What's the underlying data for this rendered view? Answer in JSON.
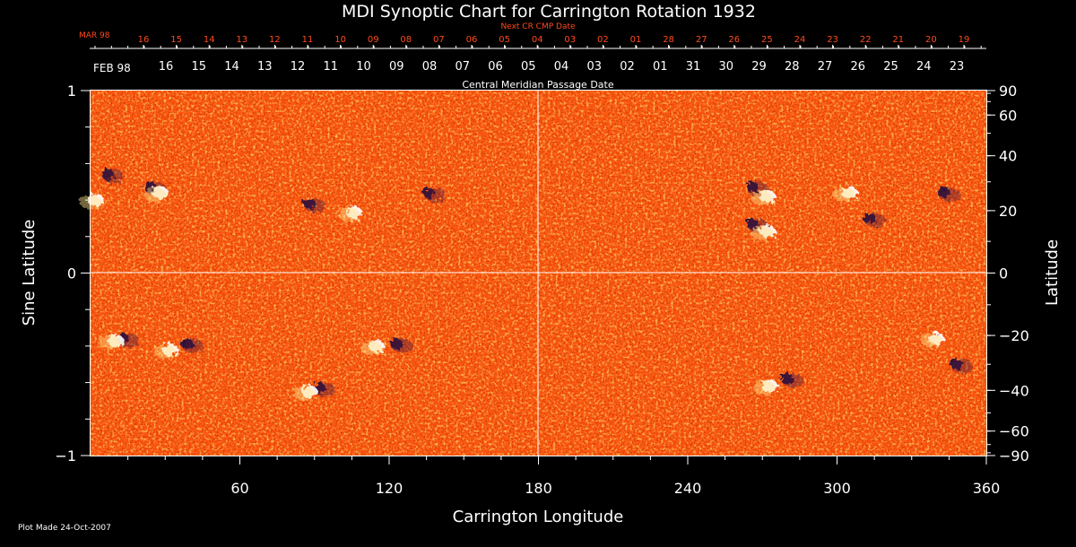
{
  "chart_data": {
    "type": "heatmap",
    "title": "MDI Synoptic Chart for Carrington Rotation 1932",
    "xlabel": "Carrington Longitude",
    "ylabel_left": "Sine Latitude",
    "ylabel_right": "Latitude",
    "xlim": [
      0,
      360
    ],
    "ylim": [
      -1,
      1
    ],
    "x_ticks": [
      "60",
      "120",
      "180",
      "240",
      "300",
      "360"
    ],
    "y_ticks_left": [
      {
        "value": 1,
        "label": "1"
      },
      {
        "value": 0,
        "label": "0"
      },
      {
        "value": -1,
        "label": "−1"
      }
    ],
    "y_ticks_right": [
      "90",
      "60",
      "40",
      "20",
      "0",
      "−20",
      "−40",
      "−60",
      "−90"
    ],
    "top_axis_next": {
      "title": "Next CR CMP Date",
      "month": "MAR 98",
      "dates": [
        "16",
        "15",
        "14",
        "13",
        "12",
        "11",
        "10",
        "09",
        "08",
        "07",
        "06",
        "05",
        "04",
        "03",
        "02",
        "01",
        "28",
        "27",
        "26",
        "25",
        "24",
        "23",
        "22",
        "21",
        "20",
        "19"
      ]
    },
    "top_axis_cmp": {
      "title": "Central Meridian Passage Date",
      "month": "FEB 98",
      "dates": [
        "16",
        "15",
        "14",
        "13",
        "12",
        "11",
        "10",
        "09",
        "08",
        "07",
        "06",
        "05",
        "04",
        "03",
        "02",
        "01",
        "31",
        "30",
        "29",
        "28",
        "27",
        "26",
        "25",
        "24",
        "23"
      ]
    },
    "footer": "Plot Made 24-Oct-2007",
    "colors": {
      "background": "#ff5a10",
      "positive": "#ffffff",
      "negative": "#1a0a3a",
      "accent": "#ff4a1c"
    },
    "regions": [
      {
        "lon": 7,
        "lat": 0.54,
        "polarity": "negative"
      },
      {
        "lon": 2,
        "lat": 0.4,
        "polarity": "positive"
      },
      {
        "lon": 24,
        "lat": 0.47,
        "polarity": "negative"
      },
      {
        "lon": 28,
        "lat": 0.44,
        "polarity": "positive"
      },
      {
        "lon": 88,
        "lat": 0.38,
        "polarity": "negative"
      },
      {
        "lon": 106,
        "lat": 0.33,
        "polarity": "positive"
      },
      {
        "lon": 136,
        "lat": 0.44,
        "polarity": "negative"
      },
      {
        "lon": 266,
        "lat": 0.47,
        "polarity": "negative"
      },
      {
        "lon": 272,
        "lat": 0.42,
        "polarity": "positive"
      },
      {
        "lon": 266,
        "lat": 0.27,
        "polarity": "negative"
      },
      {
        "lon": 272,
        "lat": 0.23,
        "polarity": "positive"
      },
      {
        "lon": 305,
        "lat": 0.44,
        "polarity": "positive"
      },
      {
        "lon": 313,
        "lat": 0.3,
        "polarity": "negative"
      },
      {
        "lon": 343,
        "lat": 0.44,
        "polarity": "negative"
      },
      {
        "lon": 13,
        "lat": -0.36,
        "polarity": "negative"
      },
      {
        "lon": 10,
        "lat": -0.37,
        "polarity": "positive"
      },
      {
        "lon": 32,
        "lat": -0.42,
        "polarity": "positive"
      },
      {
        "lon": 39,
        "lat": -0.39,
        "polarity": "negative"
      },
      {
        "lon": 115,
        "lat": -0.4,
        "polarity": "positive"
      },
      {
        "lon": 123,
        "lat": -0.39,
        "polarity": "negative"
      },
      {
        "lon": 92,
        "lat": -0.63,
        "polarity": "negative"
      },
      {
        "lon": 88,
        "lat": -0.65,
        "polarity": "positive"
      },
      {
        "lon": 280,
        "lat": -0.58,
        "polarity": "negative"
      },
      {
        "lon": 273,
        "lat": -0.62,
        "polarity": "positive"
      },
      {
        "lon": 340,
        "lat": -0.36,
        "polarity": "positive"
      },
      {
        "lon": 348,
        "lat": -0.5,
        "polarity": "negative"
      }
    ]
  }
}
